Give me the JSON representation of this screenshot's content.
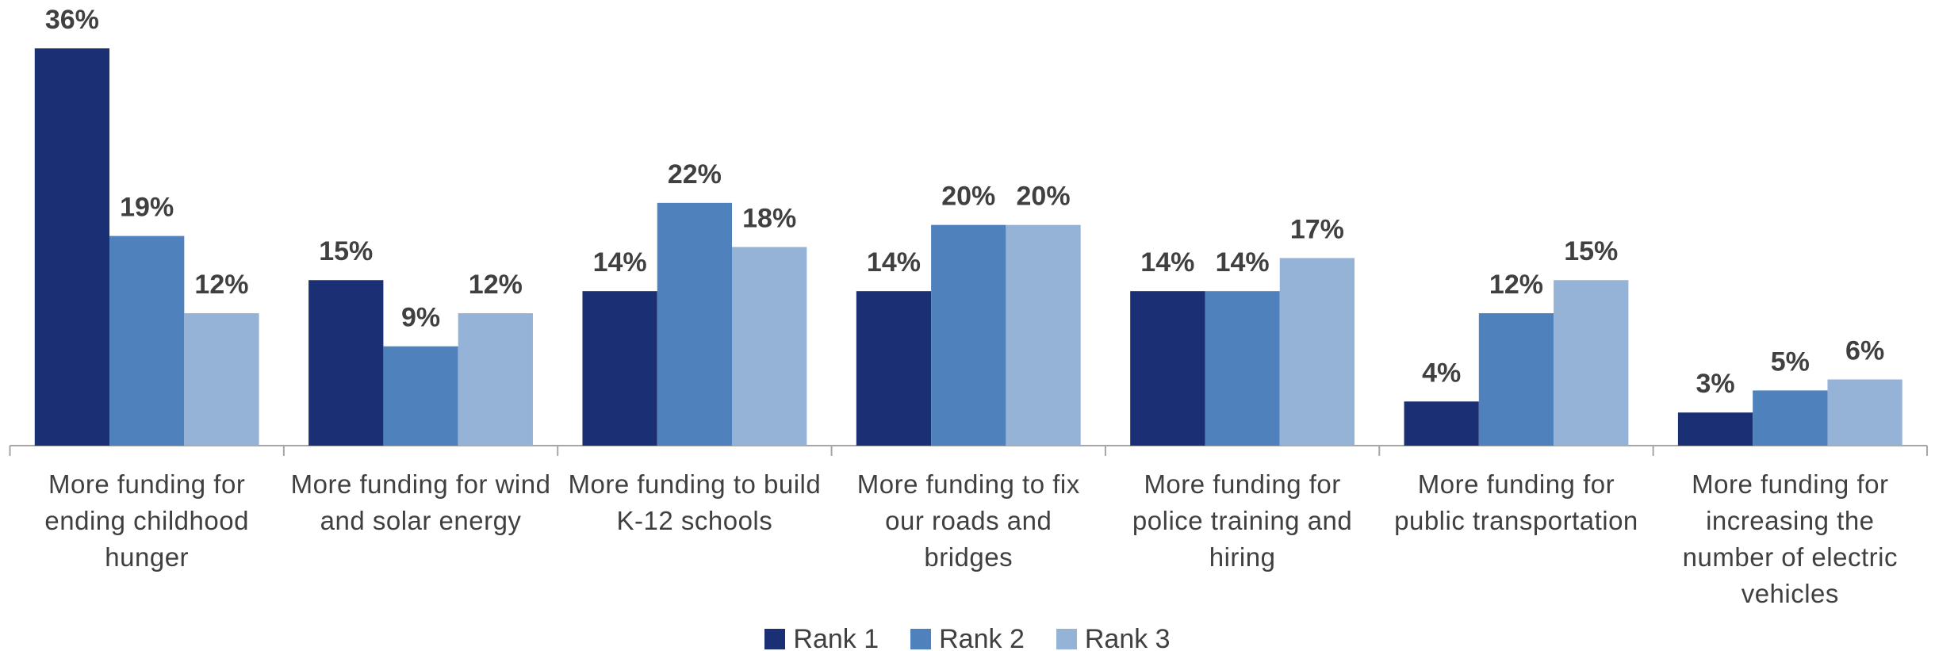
{
  "chart_data": {
    "type": "bar",
    "categories": [
      "More funding for ending childhood hunger",
      "More funding for wind and solar energy",
      "More funding to build K-12 schools",
      "More funding to fix our roads and bridges",
      "More funding for police training and hiring",
      "More funding for public transportation",
      "More funding for increasing the number of electric vehicles"
    ],
    "series": [
      {
        "name": "Rank 1",
        "color": "#1b2f74",
        "values": [
          36,
          15,
          14,
          14,
          14,
          4,
          3
        ],
        "value_labels": [
          "36%",
          "15%",
          "14%",
          "14%",
          "14%",
          "4%",
          "3%"
        ]
      },
      {
        "name": "Rank 2",
        "color": "#4f81bd",
        "values": [
          19,
          9,
          22,
          20,
          14,
          12,
          5
        ],
        "value_labels": [
          "19%",
          "9%",
          "22%",
          "20%",
          "14%",
          "12%",
          "5%"
        ]
      },
      {
        "name": "Rank 3",
        "color": "#95b3d7",
        "values": [
          12,
          12,
          18,
          20,
          17,
          15,
          6
        ],
        "value_labels": [
          "12%",
          "12%",
          "18%",
          "20%",
          "17%",
          "15%",
          "6%"
        ]
      }
    ],
    "legend": "bottom"
  }
}
